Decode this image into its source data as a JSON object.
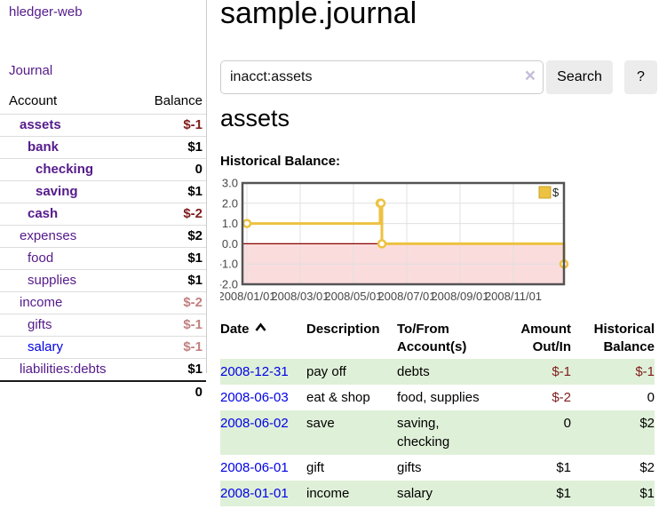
{
  "app": {
    "brand": "hledger-web"
  },
  "sidebar": {
    "journal_link": "Journal",
    "header": {
      "account": "Account",
      "balance": "Balance"
    },
    "rows": [
      {
        "label": "assets",
        "depth": 1,
        "bold": true,
        "link_style": "purple",
        "balance": "$-1",
        "balance_style": "neg-dark"
      },
      {
        "label": "bank",
        "depth": 2,
        "bold": true,
        "link_style": "purple",
        "balance": "$1",
        "balance_style": "pos"
      },
      {
        "label": "checking",
        "depth": 3,
        "bold": true,
        "link_style": "purple",
        "balance": "0",
        "balance_style": "pos"
      },
      {
        "label": "saving",
        "depth": 3,
        "bold": true,
        "link_style": "purple",
        "balance": "$1",
        "balance_style": "pos"
      },
      {
        "label": "cash",
        "depth": 2,
        "bold": true,
        "link_style": "purple",
        "balance": "$-2",
        "balance_style": "neg-dark"
      },
      {
        "label": "expenses",
        "depth": 1,
        "bold": false,
        "link_style": "purple",
        "balance": "$2",
        "balance_style": "pos"
      },
      {
        "label": "food",
        "depth": 2,
        "bold": false,
        "link_style": "purple",
        "balance": "$1",
        "balance_style": "pos"
      },
      {
        "label": "supplies",
        "depth": 2,
        "bold": false,
        "link_style": "purple",
        "balance": "$1",
        "balance_style": "pos"
      },
      {
        "label": "income",
        "depth": 1,
        "bold": false,
        "link_style": "purple",
        "balance": "$-2",
        "balance_style": "neg-light"
      },
      {
        "label": "gifts",
        "depth": 2,
        "bold": false,
        "link_style": "purple",
        "balance": "$-1",
        "balance_style": "neg-light"
      },
      {
        "label": "salary",
        "depth": 2,
        "bold": false,
        "link_style": "blue",
        "balance": "$-1",
        "balance_style": "neg-light"
      },
      {
        "label": "liabilities:debts",
        "depth": 1,
        "bold": false,
        "link_style": "purple",
        "balance": "$1",
        "balance_style": "pos"
      }
    ],
    "total": "0"
  },
  "main": {
    "title": "sample.journal",
    "search": {
      "value": "inacct:assets",
      "clear_icon": "×",
      "button_label": "Search",
      "help_label": "?"
    },
    "account_title": "assets",
    "chart_label": "Historical Balance:"
  },
  "chart_data": {
    "type": "line",
    "step": true,
    "title": "Historical Balance",
    "legend": {
      "label": "$",
      "position": "top-right"
    },
    "series": [
      {
        "name": "$",
        "color": "#edc240",
        "points": [
          {
            "date": "2008-01-01",
            "value": 1
          },
          {
            "date": "2008-06-01",
            "value": 2
          },
          {
            "date": "2008-06-02",
            "value": 2
          },
          {
            "date": "2008-06-03",
            "value": 0
          },
          {
            "date": "2008-12-31",
            "value": -1
          }
        ]
      }
    ],
    "ylim": [
      -2,
      3
    ],
    "yticks": [
      {
        "value": 3,
        "label": "3.0"
      },
      {
        "value": 2,
        "label": "2.0"
      },
      {
        "value": 1,
        "label": "1.0"
      },
      {
        "value": 0,
        "label": "0.0"
      },
      {
        "value": -1,
        "label": "-1.0"
      },
      {
        "value": -2,
        "label": "-2.0"
      }
    ],
    "xticks": [
      {
        "date": "2008-01-01",
        "label": "2008/01/01"
      },
      {
        "date": "2008-03-01",
        "label": "2008/03/01"
      },
      {
        "date": "2008-05-01",
        "label": "2008/05/01"
      },
      {
        "date": "2008-07-01",
        "label": "2008/07/01"
      },
      {
        "date": "2008-09-01",
        "label": "2008/09/01"
      },
      {
        "date": "2008-11-01",
        "label": "2008/11/01"
      }
    ],
    "grid": true,
    "zero_line_color": "#8b0000",
    "negative_region_color": "#fbdcdc",
    "border_color": "#545454",
    "grid_color": "#e0e0e0",
    "tick_label_color": "#474747"
  },
  "register": {
    "headers": {
      "date": "Date",
      "sort_icon": "caret-up",
      "description": "Description",
      "accounts": "To/From Account(s)",
      "amount": "Amount Out/In",
      "balance": "Historical Balance"
    },
    "rows": [
      {
        "date": "2008-12-31",
        "description": "pay off",
        "accounts": [
          "debts"
        ],
        "amount": "$-1",
        "amount_style": "neg-dark",
        "balance": "$-1",
        "balance_style": "neg-dark",
        "shaded": true
      },
      {
        "date": "2008-06-03",
        "description": "eat & shop",
        "accounts": [
          "food, supplies"
        ],
        "amount": "$-2",
        "amount_style": "neg-dark",
        "balance": "0",
        "balance_style": "pos",
        "shaded": false
      },
      {
        "date": "2008-06-02",
        "description": "save",
        "accounts": [
          "saving,",
          "checking"
        ],
        "amount": "0",
        "amount_style": "pos",
        "balance": "$2",
        "balance_style": "pos",
        "shaded": true
      },
      {
        "date": "2008-06-01",
        "description": "gift",
        "accounts": [
          "gifts"
        ],
        "amount": "$1",
        "amount_style": "pos",
        "balance": "$2",
        "balance_style": "pos",
        "shaded": false
      },
      {
        "date": "2008-01-01",
        "description": "income",
        "accounts": [
          "salary"
        ],
        "amount": "$1",
        "amount_style": "pos",
        "balance": "$1",
        "balance_style": "pos",
        "shaded": true
      }
    ]
  },
  "colors": {
    "accent_purple": "#551a8b",
    "link_blue": "#0000e8",
    "negative_dark": "#7f1c1c",
    "negative_light": "#c1807f",
    "row_green": "#dff0d8",
    "chart_line": "#edc240"
  }
}
